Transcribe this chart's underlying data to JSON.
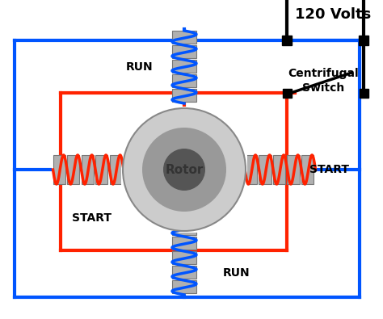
{
  "background_color": "#ffffff",
  "blue_color": "#0055ff",
  "red_color": "#ff2200",
  "black_color": "#000000",
  "rotor_label": "Rotor",
  "run_label": "RUN",
  "start_label": "START",
  "volts_label": "120 Volts",
  "switch_label": "Centrifugal\nSwitch",
  "label_fontsize": 10,
  "coil_gray": "#b0b0b0",
  "coil_edge": "#777777",
  "rotor_outer": "#cccccc",
  "rotor_mid": "#999999",
  "rotor_inner": "#555555"
}
